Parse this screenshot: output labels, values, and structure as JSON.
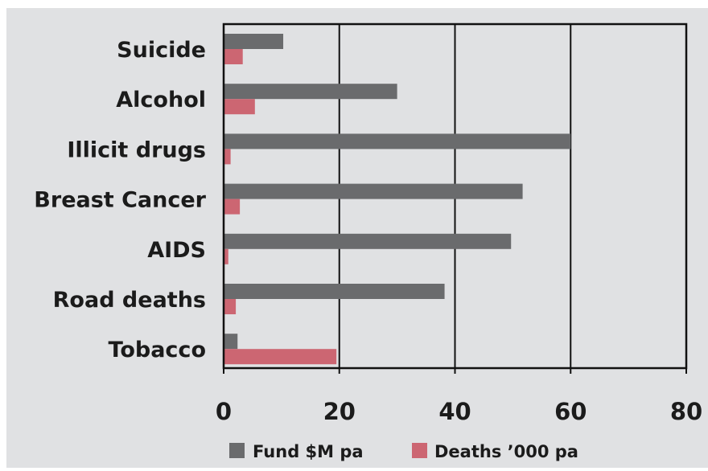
{
  "chart_data": {
    "type": "bar",
    "orientation": "horizontal",
    "categories": [
      "Suicide",
      "Alcohol",
      "Illicit drugs",
      "Breast Cancer",
      "AIDS",
      "Road deaths",
      "Tobacco"
    ],
    "series": [
      {
        "name": "Fund $M pa",
        "color": "#6a6b6d",
        "values": [
          10.3,
          30,
          60,
          51.7,
          49.7,
          38.2,
          2.4
        ]
      },
      {
        "name": "Deaths ’000 pa",
        "color": "#cc6672",
        "values": [
          3.3,
          5.4,
          1.2,
          2.8,
          0.8,
          2.1,
          19.5
        ]
      }
    ],
    "xlim": [
      0,
      80
    ],
    "xticks": [
      "0",
      "20",
      "40",
      "60",
      "80"
    ],
    "grid": true,
    "legend_position": "bottom",
    "background": "#e0e1e3"
  }
}
